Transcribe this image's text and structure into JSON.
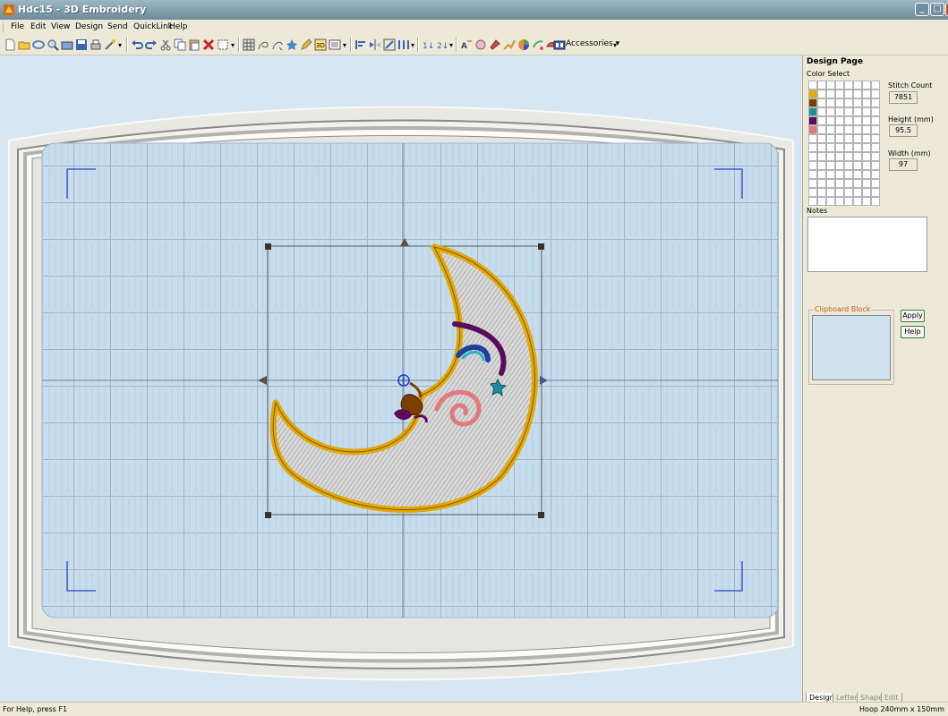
{
  "window": {
    "title": "Hdc15 - 3D Embroidery"
  },
  "menu": [
    {
      "label": "File"
    },
    {
      "label": "Edit"
    },
    {
      "label": "View"
    },
    {
      "label": "Design"
    },
    {
      "label": "Send"
    },
    {
      "label": "QuickLink"
    },
    {
      "label": "Help"
    }
  ],
  "toolbar": {
    "accessories_label": "Accessories ▾"
  },
  "design_page": {
    "title": "Design Page",
    "color_select_label": "Color Select",
    "thread_colors": [
      "#e8a800",
      "#7a4000",
      "#1e8e9e",
      "#5a0c5c",
      "#e07a80"
    ],
    "stitch_count_label": "Stitch Count",
    "stitch_count": "7851",
    "height_label": "Height (mm)",
    "height": "95.5",
    "width_label": "Width (mm)",
    "width": "97",
    "notes_label": "Notes",
    "clipboard_label": "Clipboard Block",
    "apply_label": "Apply",
    "help_label": "Help",
    "tabs": [
      "Design",
      "Letter",
      "Shape",
      "Edit"
    ]
  },
  "status": {
    "left": "For Help, press F1",
    "right": "Hoop  240mm x 150mm"
  }
}
